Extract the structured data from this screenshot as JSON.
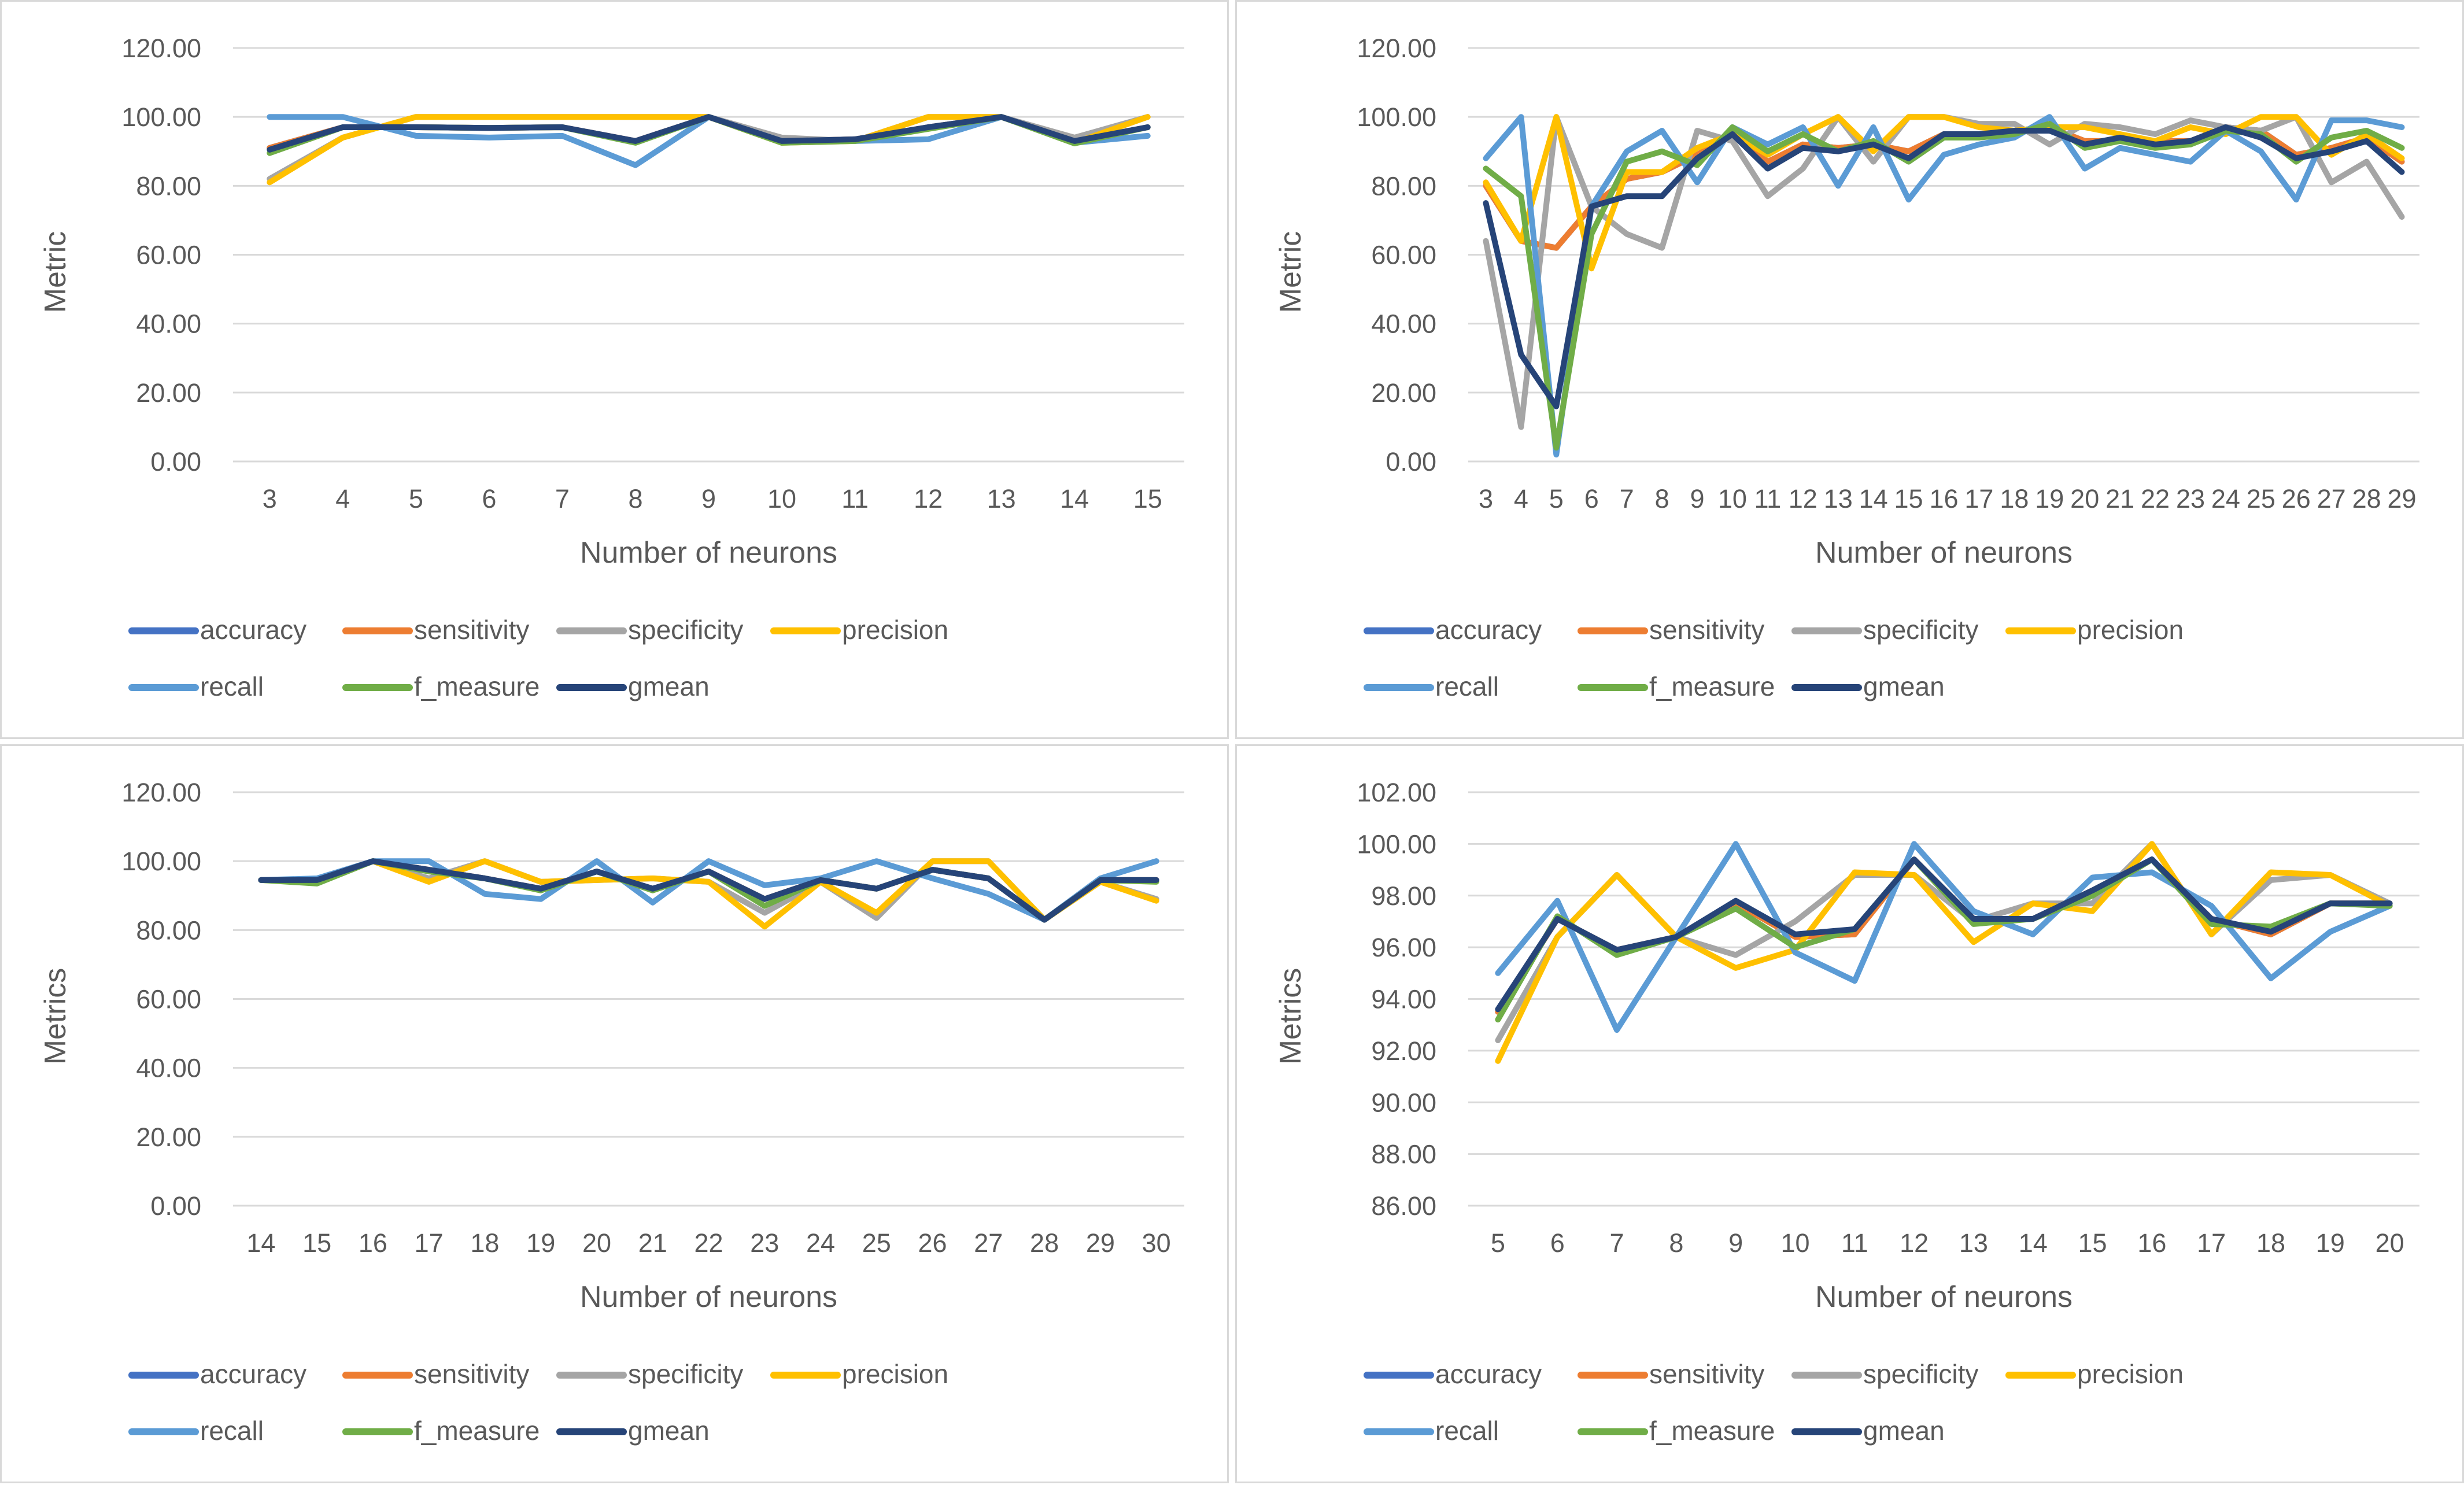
{
  "colors": {
    "accuracy": "#4472c4",
    "sensitivity": "#ed7d31",
    "specificity": "#a5a5a5",
    "precision": "#ffc000",
    "recall": "#5b9bd5",
    "f_measure": "#70ad47",
    "gmean": "#264478"
  },
  "chart_data": [
    {
      "type": "line",
      "xlabel": "Number of neurons",
      "ylabel": "Metric",
      "ylim": [
        0,
        120
      ],
      "yticks": [
        "0.00",
        "20.00",
        "40.00",
        "60.00",
        "80.00",
        "100.00",
        "120.00"
      ],
      "categories": [
        "3",
        "4",
        "5",
        "6",
        "7",
        "8",
        "9",
        "10",
        "11",
        "12",
        "13",
        "14",
        "15"
      ],
      "legend_position": "bottom",
      "series": [
        {
          "name": "accuracy",
          "values": [
            91,
            97,
            97,
            96.8,
            97,
            93,
            100,
            93,
            93.5,
            97,
            100,
            93,
            97
          ]
        },
        {
          "name": "sensitivity",
          "values": [
            91,
            97,
            97,
            96.8,
            97,
            93,
            100,
            93,
            93.5,
            97,
            100,
            93,
            97
          ]
        },
        {
          "name": "specificity",
          "values": [
            82,
            94,
            100,
            100,
            100,
            100,
            100,
            94,
            93,
            100,
            100,
            94,
            100
          ]
        },
        {
          "name": "precision",
          "values": [
            81,
            94,
            100,
            100,
            100,
            100,
            100,
            92.5,
            93,
            100,
            100,
            92.5,
            100
          ]
        },
        {
          "name": "recall",
          "values": [
            100,
            100,
            94.5,
            94,
            94.5,
            86,
            100,
            93,
            93,
            93.5,
            100,
            92.5,
            94.5
          ]
        },
        {
          "name": "f_measure",
          "values": [
            89.5,
            97,
            97,
            96.8,
            97,
            92.5,
            100,
            92.5,
            93,
            96.5,
            100,
            92.3,
            97
          ]
        },
        {
          "name": "gmean",
          "values": [
            90.5,
            97,
            97,
            96.8,
            97,
            93,
            100,
            93,
            93.5,
            97,
            100,
            93,
            97
          ]
        }
      ]
    },
    {
      "type": "line",
      "xlabel": "Number of neurons",
      "ylabel": "Metric",
      "ylim": [
        0,
        120
      ],
      "yticks": [
        "0.00",
        "20.00",
        "40.00",
        "60.00",
        "80.00",
        "100.00",
        "120.00"
      ],
      "categories": [
        "3",
        "4",
        "5",
        "6",
        "7",
        "8",
        "9",
        "10",
        "11",
        "12",
        "13",
        "14",
        "15",
        "16",
        "17",
        "18",
        "19",
        "20",
        "21",
        "22",
        "23",
        "24",
        "25",
        "26",
        "27",
        "28",
        "29"
      ],
      "legend_position": "bottom",
      "series": [
        {
          "name": "accuracy",
          "values": [
            80,
            64,
            62,
            74,
            82,
            84,
            89,
            95,
            87,
            92,
            91,
            92,
            90,
            95,
            95,
            96,
            97,
            93,
            93,
            93,
            93,
            97,
            96,
            89,
            91,
            94,
            87
          ]
        },
        {
          "name": "sensitivity",
          "values": [
            80,
            64,
            62,
            74,
            82,
            84,
            89,
            95,
            87,
            92,
            91,
            92,
            90,
            95,
            95,
            96,
            97,
            93,
            93,
            93,
            93,
            97,
            96,
            89,
            91,
            94,
            87
          ]
        },
        {
          "name": "specificity",
          "values": [
            64,
            10,
            100,
            74,
            66,
            62,
            96,
            93,
            77,
            85,
            100,
            87,
            100,
            100,
            98,
            98,
            92,
            98,
            97,
            95,
            99,
            97,
            96,
            100,
            81,
            87,
            71
          ]
        },
        {
          "name": "precision",
          "values": [
            81,
            64,
            100,
            56,
            84,
            84,
            91,
            95,
            89,
            95,
            100,
            90,
            100,
            100,
            97,
            96,
            97,
            97,
            95,
            93,
            97,
            95,
            100,
            100,
            89,
            95,
            88
          ]
        },
        {
          "name": "recall",
          "values": [
            88,
            100,
            2,
            74,
            90,
            96,
            81,
            97,
            92,
            97,
            80,
            97,
            76,
            89,
            92,
            94,
            100,
            85,
            91,
            89,
            87,
            96,
            90,
            76,
            99,
            99,
            97
          ]
        },
        {
          "name": "f_measure",
          "values": [
            85,
            77,
            4,
            66,
            87,
            90,
            86,
            97,
            90,
            95,
            90,
            93,
            87,
            94,
            94,
            95,
            98,
            91,
            93,
            91,
            92,
            96,
            95,
            87,
            94,
            96,
            91
          ]
        },
        {
          "name": "gmean",
          "values": [
            75,
            31,
            16,
            74,
            77,
            77,
            88,
            95,
            85,
            91,
            90,
            92,
            88,
            95,
            95,
            96,
            96,
            92,
            94,
            92,
            93,
            97,
            94,
            88,
            90,
            93,
            84
          ]
        }
      ]
    },
    {
      "type": "line",
      "xlabel": "Number of neurons",
      "ylabel": "Metrics",
      "ylim": [
        0,
        120
      ],
      "yticks": [
        "0.00",
        "20.00",
        "40.00",
        "60.00",
        "80.00",
        "100.00",
        "120.00"
      ],
      "categories": [
        "14",
        "15",
        "16",
        "17",
        "18",
        "19",
        "20",
        "21",
        "22",
        "23",
        "24",
        "25",
        "26",
        "27",
        "28",
        "29",
        "30"
      ],
      "legend_position": "bottom",
      "series": [
        {
          "name": "accuracy",
          "values": [
            94.5,
            94.5,
            100,
            97.5,
            95,
            92,
            97,
            92,
            97,
            89,
            94.5,
            92,
            97.5,
            95,
            83,
            94.5,
            94.5
          ]
        },
        {
          "name": "sensitivity",
          "values": [
            94.5,
            94.5,
            100,
            97.5,
            95,
            92,
            97,
            92,
            97,
            89,
            94.5,
            92,
            97.5,
            95,
            83,
            94.5,
            94.5
          ]
        },
        {
          "name": "specificity",
          "values": [
            94.5,
            94,
            100,
            95,
            100,
            94,
            94.5,
            95,
            94,
            85,
            94,
            83.5,
            100,
            100,
            83,
            94,
            89
          ]
        },
        {
          "name": "precision",
          "values": [
            94.5,
            94,
            100,
            94,
            100,
            94,
            94.5,
            95,
            94,
            81,
            94,
            85,
            100,
            100,
            83,
            94,
            88.5
          ]
        },
        {
          "name": "recall",
          "values": [
            94.5,
            95,
            100,
            100,
            90.5,
            89,
            100,
            88,
            100,
            93,
            95,
            100,
            95,
            90.5,
            83,
            95,
            100
          ]
        },
        {
          "name": "f_measure",
          "values": [
            94.5,
            93.5,
            100,
            97,
            95,
            91.5,
            97,
            91.5,
            97,
            87,
            94.5,
            92,
            97.5,
            95,
            83,
            94.5,
            94
          ]
        },
        {
          "name": "gmean",
          "values": [
            94.5,
            94.5,
            100,
            97.5,
            95,
            92,
            97,
            92,
            97,
            89,
            94.5,
            92,
            97.5,
            95,
            83,
            94.5,
            94.5
          ]
        }
      ]
    },
    {
      "type": "line",
      "xlabel": "Number of neurons",
      "ylabel": "Metrics",
      "ylim": [
        86,
        102
      ],
      "yticks": [
        "86.00",
        "88.00",
        "90.00",
        "92.00",
        "94.00",
        "96.00",
        "98.00",
        "100.00",
        "102.00"
      ],
      "categories": [
        "5",
        "6",
        "7",
        "8",
        "9",
        "10",
        "11",
        "12",
        "13",
        "14",
        "15",
        "16",
        "17",
        "18",
        "19",
        "20"
      ],
      "legend_position": "bottom",
      "series": [
        {
          "name": "accuracy",
          "values": [
            93.5,
            97.1,
            95.9,
            96.4,
            97.7,
            96.4,
            96.5,
            99.4,
            97.1,
            97.1,
            98.2,
            99.4,
            97.1,
            96.5,
            97.7,
            97.7
          ]
        },
        {
          "name": "sensitivity",
          "values": [
            93.5,
            97.1,
            95.9,
            96.4,
            97.7,
            96.4,
            96.5,
            99.4,
            97.1,
            97.1,
            98.2,
            99.4,
            97.1,
            96.5,
            97.7,
            97.7
          ]
        },
        {
          "name": "specificity",
          "values": [
            92.4,
            96.4,
            98.8,
            96.4,
            95.7,
            97.0,
            98.8,
            98.8,
            97.0,
            97.7,
            97.7,
            100,
            96.5,
            98.6,
            98.8,
            97.7
          ]
        },
        {
          "name": "precision",
          "values": [
            91.6,
            96.4,
            98.8,
            96.4,
            95.2,
            95.9,
            98.9,
            98.8,
            96.2,
            97.7,
            97.4,
            100,
            96.5,
            98.9,
            98.8,
            97.6
          ]
        },
        {
          "name": "recall",
          "values": [
            95.0,
            97.8,
            92.8,
            96.4,
            100,
            95.8,
            94.7,
            100,
            97.4,
            96.5,
            98.7,
            98.9,
            97.6,
            94.8,
            96.6,
            97.6
          ]
        },
        {
          "name": "f_measure",
          "values": [
            93.2,
            97.2,
            95.7,
            96.4,
            97.5,
            96.0,
            96.7,
            99.4,
            96.9,
            97.1,
            98.0,
            99.4,
            96.9,
            96.8,
            97.7,
            97.6
          ]
        },
        {
          "name": "gmean",
          "values": [
            93.6,
            97.1,
            95.9,
            96.4,
            97.8,
            96.5,
            96.7,
            99.4,
            97.1,
            97.1,
            98.2,
            99.4,
            97.1,
            96.6,
            97.7,
            97.7
          ]
        }
      ]
    }
  ]
}
